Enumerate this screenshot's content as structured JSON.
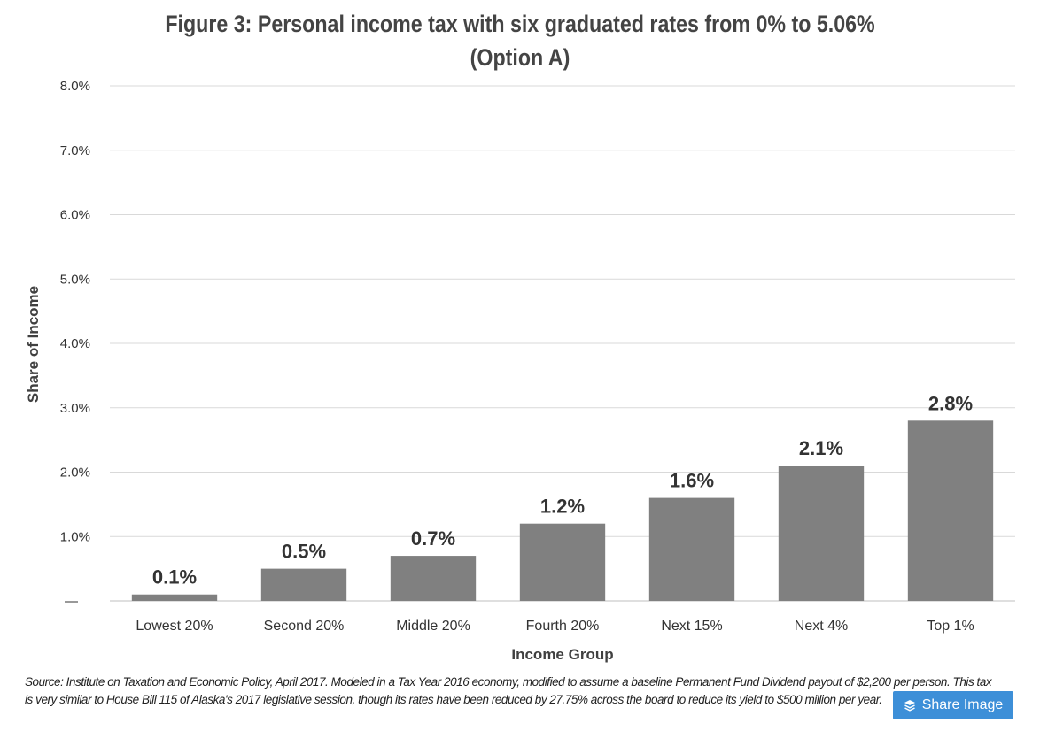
{
  "chart_data": {
    "type": "bar",
    "title_lines": [
      "Figure 3: Personal income tax with six graduated rates from 0% to 5.06%",
      "(Option A)"
    ],
    "xlabel": "Income Group",
    "ylabel": "Share of Income",
    "categories": [
      "Lowest 20%",
      "Second 20%",
      "Middle 20%",
      "Fourth 20%",
      "Next 15%",
      "Next 4%",
      "Top 1%"
    ],
    "values": [
      0.1,
      0.5,
      0.7,
      1.2,
      1.6,
      2.1,
      2.8
    ],
    "data_labels": [
      "0.1%",
      "0.5%",
      "0.7%",
      "1.2%",
      "1.6%",
      "2.1%",
      "2.8%"
    ],
    "ylim": [
      0,
      8
    ],
    "y_ticks": [
      0,
      1,
      2,
      3,
      4,
      5,
      6,
      7,
      8
    ],
    "y_tick_labels": [
      "—",
      "1.0%",
      "2.0%",
      "3.0%",
      "4.0%",
      "5.0%",
      "6.0%",
      "7.0%",
      "8.0%"
    ],
    "grid": true,
    "legend": "none",
    "bar_color": "#808080",
    "grid_color": "#d9d9d9"
  },
  "source_note": {
    "line1": "Source: Institute on Taxation and Economic Policy, April 2017.  Modeled in a Tax Year 2016 economy, modified to assume a baseline Permanent Fund Dividend payout of $2,200 per person. This tax",
    "line2": "is very similar to House Bill 115 of Alaska's 2017 legislative session, though its rates have been reduced by 27.75% across the board to reduce its yield to $500 million per year."
  },
  "share_button": {
    "label": "Share Image",
    "icon": "layers-icon",
    "color": "#3d8fd8"
  }
}
